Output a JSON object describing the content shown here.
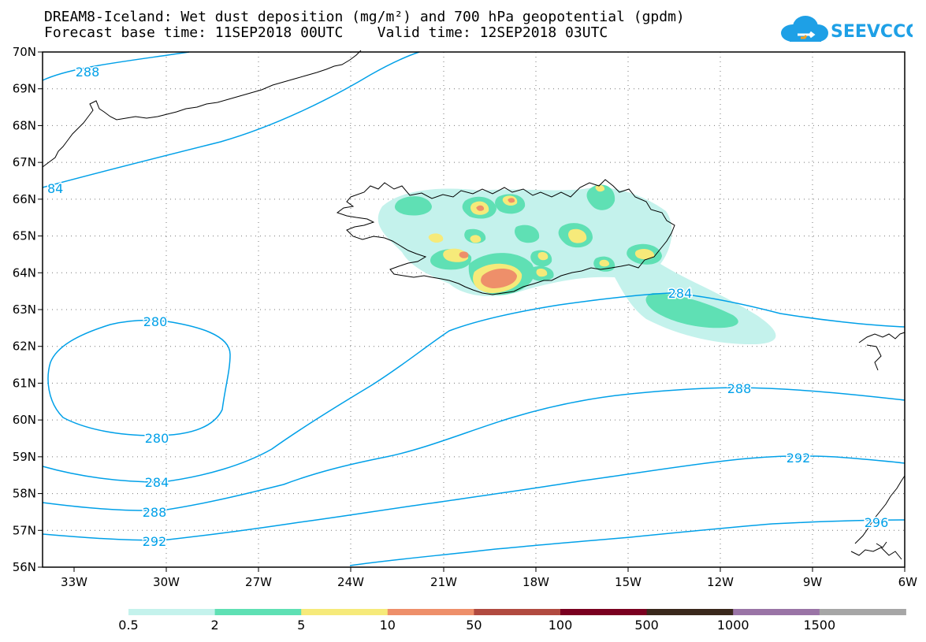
{
  "title_line1": "DREAM8-Iceland: Wet dust deposition (mg/m²) and 700 hPa geopotential (gpdm)",
  "title_line2": "Forecast base time: 11SEP2018 00UTC    Valid time: 12SEP2018 03UTC",
  "logo_text": "SEEVCCC",
  "lat_labels": [
    "70N",
    "69N",
    "68N",
    "67N",
    "66N",
    "65N",
    "64N",
    "63N",
    "62N",
    "61N",
    "60N",
    "59N",
    "58N",
    "57N",
    "56N"
  ],
  "lon_labels": [
    "33W",
    "30W",
    "27W",
    "24W",
    "21W",
    "18W",
    "15W",
    "12W",
    "9W",
    "6W"
  ],
  "contour_labels": [
    "288",
    "84",
    "280",
    "280",
    "284",
    "284",
    "288",
    "288",
    "292",
    "292",
    "296"
  ],
  "colorbar": {
    "colors": [
      "#c4f2ec",
      "#5fe0b4",
      "#f6ea7a",
      "#ee8f6a",
      "#b14a40",
      "#7a0020",
      "#3a281c",
      "#9a74a6",
      "#a6a6a6"
    ],
    "labels": [
      "0.5",
      "2",
      "5",
      "10",
      "50",
      "100",
      "500",
      "1000",
      "1500"
    ]
  }
}
